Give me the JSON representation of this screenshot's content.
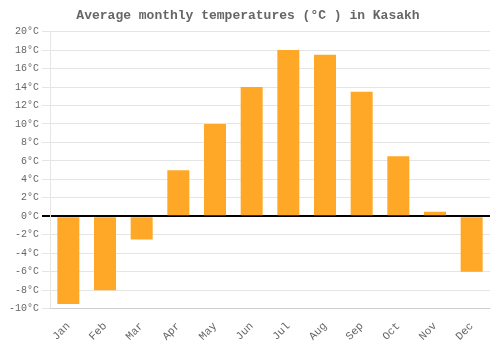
{
  "chart_data": {
    "type": "bar",
    "title": "Average monthly temperatures (°C ) in Kasakh",
    "categories": [
      "Jan",
      "Feb",
      "Mar",
      "Apr",
      "May",
      "Jun",
      "Jul",
      "Aug",
      "Sep",
      "Oct",
      "Nov",
      "Dec"
    ],
    "values": [
      -9.5,
      -8.0,
      -2.5,
      5.0,
      10.0,
      14.0,
      18.0,
      17.5,
      13.5,
      6.5,
      0.5,
      -6.0
    ],
    "color": "#FFA726",
    "ylim": [
      -10,
      20
    ],
    "yticks": [
      {
        "value": -10,
        "label": "-10°C"
      },
      {
        "value": -8,
        "label": "-8°C"
      },
      {
        "value": -6,
        "label": "-6°C"
      },
      {
        "value": -4,
        "label": "-4°C"
      },
      {
        "value": -2,
        "label": "-2°C"
      },
      {
        "value": 0,
        "label": "0°C"
      },
      {
        "value": 2,
        "label": "2°C"
      },
      {
        "value": 4,
        "label": "4°C"
      },
      {
        "value": 6,
        "label": "6°C"
      },
      {
        "value": 8,
        "label": "8°C"
      },
      {
        "value": 10,
        "label": "10°C"
      },
      {
        "value": 12,
        "label": "12°C"
      },
      {
        "value": 14,
        "label": "14°C"
      },
      {
        "value": 16,
        "label": "16°C"
      },
      {
        "value": 18,
        "label": "18°C"
      },
      {
        "value": 20,
        "label": "20°C"
      }
    ],
    "grid": true
  }
}
